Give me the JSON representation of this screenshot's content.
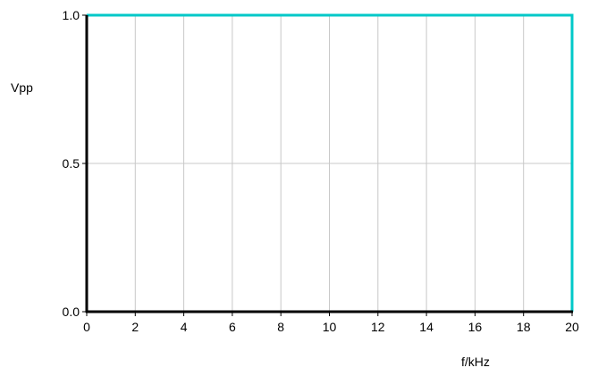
{
  "chart_data": {
    "type": "line",
    "title": "",
    "xlabel": "f/kHz",
    "ylabel": "Vpp",
    "xlim": [
      0,
      20
    ],
    "ylim": [
      0,
      1
    ],
    "x_ticks": [
      0,
      2,
      4,
      6,
      8,
      10,
      12,
      14,
      16,
      18,
      20
    ],
    "x_tick_labels": [
      "0",
      "2",
      "4",
      "6",
      "8",
      "10",
      "12",
      "14",
      "16",
      "18",
      "20"
    ],
    "y_ticks": [
      0,
      0.5,
      1
    ],
    "y_tick_labels": [
      "0.0",
      "0.5",
      "1.0"
    ],
    "grid": true,
    "legend": "none",
    "series": [
      {
        "color": "#00c8c8",
        "x": [
          0,
          20,
          20
        ],
        "y": [
          1,
          1,
          0
        ]
      }
    ],
    "colors": {
      "grid": "#c8c8c8",
      "axis": "#000000",
      "series": "#00c8c8"
    }
  }
}
